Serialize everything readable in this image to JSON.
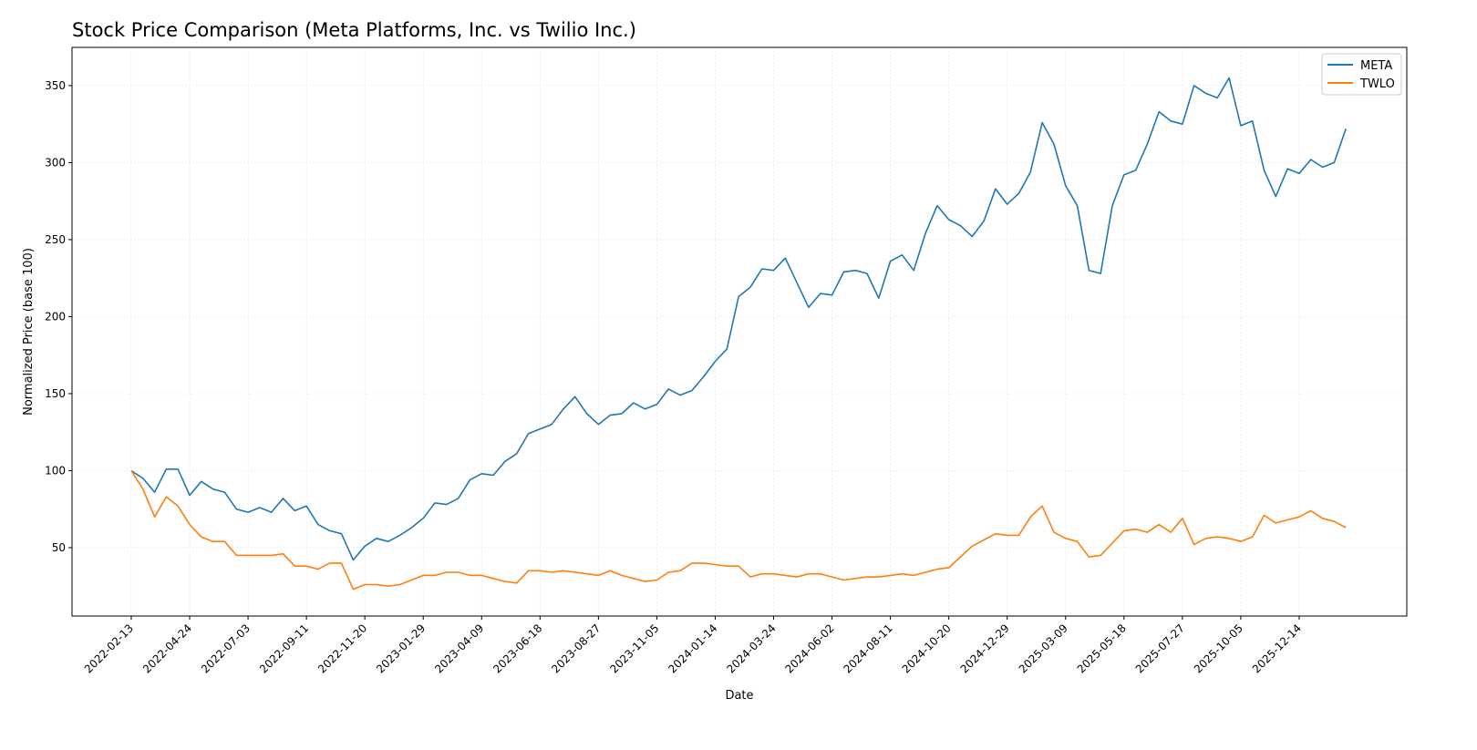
{
  "chart_data": {
    "type": "line",
    "title": "Stock Price Comparison (Meta Platforms, Inc. vs Twilio Inc.)",
    "xlabel": "Date",
    "ylabel": "Normalized Price (base 100)",
    "xlim": [
      "2021-12-04",
      "2026-04-22"
    ],
    "ylim": [
      5.6,
      374.8
    ],
    "grid": true,
    "legend_placement": "top-right",
    "x_ticks": [
      "2022-02-13",
      "2022-04-24",
      "2022-07-03",
      "2022-09-11",
      "2022-11-20",
      "2023-01-29",
      "2023-04-09",
      "2023-06-18",
      "2023-08-27",
      "2023-11-05",
      "2024-01-14",
      "2024-03-24",
      "2024-06-02",
      "2024-08-11",
      "2024-10-20",
      "2024-12-29",
      "2025-03-09",
      "2025-05-18",
      "2025-07-27",
      "2025-10-05",
      "2025-12-14"
    ],
    "y_ticks": [
      50,
      100,
      150,
      200,
      250,
      300,
      350
    ],
    "x": [
      "2022-02-13",
      "2022-02-27",
      "2022-03-13",
      "2022-03-27",
      "2022-04-10",
      "2022-04-24",
      "2022-05-08",
      "2022-05-22",
      "2022-06-05",
      "2022-06-19",
      "2022-07-03",
      "2022-07-17",
      "2022-07-31",
      "2022-08-14",
      "2022-08-28",
      "2022-09-11",
      "2022-09-25",
      "2022-10-09",
      "2022-10-23",
      "2022-11-06",
      "2022-11-20",
      "2022-12-04",
      "2022-12-18",
      "2023-01-01",
      "2023-01-15",
      "2023-01-29",
      "2023-02-12",
      "2023-02-26",
      "2023-03-12",
      "2023-03-26",
      "2023-04-09",
      "2023-04-23",
      "2023-05-07",
      "2023-05-21",
      "2023-06-04",
      "2023-06-18",
      "2023-07-02",
      "2023-07-16",
      "2023-07-30",
      "2023-08-13",
      "2023-08-27",
      "2023-09-10",
      "2023-09-24",
      "2023-10-08",
      "2023-10-22",
      "2023-11-05",
      "2023-11-19",
      "2023-12-03",
      "2023-12-17",
      "2023-12-31",
      "2024-01-14",
      "2024-01-28",
      "2024-02-11",
      "2024-02-25",
      "2024-03-10",
      "2024-03-24",
      "2024-04-07",
      "2024-04-21",
      "2024-05-05",
      "2024-05-19",
      "2024-06-02",
      "2024-06-16",
      "2024-06-30",
      "2024-07-14",
      "2024-07-28",
      "2024-08-11",
      "2024-08-25",
      "2024-09-08",
      "2024-09-22",
      "2024-10-06",
      "2024-10-20",
      "2024-11-03",
      "2024-11-17",
      "2024-12-01",
      "2024-12-15",
      "2024-12-29",
      "2025-01-12",
      "2025-01-26",
      "2025-02-09",
      "2025-02-23",
      "2025-03-09",
      "2025-03-23",
      "2025-04-06",
      "2025-04-20",
      "2025-05-04",
      "2025-05-18",
      "2025-06-01",
      "2025-06-15",
      "2025-06-29",
      "2025-07-13",
      "2025-07-27",
      "2025-08-10",
      "2025-08-24",
      "2025-09-07",
      "2025-09-21",
      "2025-10-05",
      "2025-10-19",
      "2025-11-02",
      "2025-11-16",
      "2025-11-30",
      "2025-12-14",
      "2025-12-28",
      "2026-01-11",
      "2026-01-25",
      "2026-02-08"
    ],
    "series": [
      {
        "name": "META",
        "color": "#1f77b4",
        "values": [
          100,
          95,
          86,
          101,
          101,
          84,
          93,
          88,
          86,
          75,
          73,
          76,
          73,
          82,
          74,
          77,
          65,
          61,
          59,
          42,
          51,
          56,
          54,
          58,
          63,
          69,
          79,
          78,
          82,
          94,
          98,
          97,
          106,
          111,
          124,
          127,
          130,
          140,
          148,
          137,
          130,
          136,
          137,
          144,
          140,
          143,
          153,
          149,
          152,
          161,
          171,
          179,
          213,
          219,
          231,
          230,
          238,
          222,
          206,
          215,
          214,
          229,
          230,
          228,
          212,
          236,
          240,
          230,
          254,
          272,
          263,
          259,
          252,
          262,
          283,
          273,
          280,
          294,
          326,
          312,
          285,
          272,
          230,
          228,
          272,
          292,
          295,
          312,
          333,
          327,
          325,
          350,
          345,
          342,
          355,
          324,
          327,
          295,
          278,
          296,
          293,
          302,
          297,
          300,
          322
        ]
      },
      {
        "name": "TWLO",
        "color": "#ff7f0e",
        "values": [
          100,
          88,
          70,
          83,
          77,
          65,
          57,
          54,
          54,
          45,
          45,
          45,
          45,
          46,
          38,
          38,
          36,
          40,
          40,
          23,
          26,
          26,
          25,
          26,
          29,
          32,
          32,
          34,
          34,
          32,
          32,
          30,
          28,
          27,
          35,
          35,
          34,
          35,
          34,
          33,
          32,
          35,
          32,
          30,
          28,
          29,
          34,
          35,
          40,
          40,
          39,
          38,
          38,
          31,
          33,
          33,
          32,
          31,
          33,
          33,
          31,
          29,
          30,
          31,
          31,
          32,
          33,
          32,
          34,
          36,
          37,
          44,
          51,
          55,
          59,
          58,
          58,
          70,
          77,
          60,
          56,
          54,
          44,
          45,
          53,
          61,
          62,
          60,
          65,
          60,
          69,
          52,
          56,
          57,
          56,
          54,
          57,
          71,
          66,
          68,
          70,
          74,
          69,
          67,
          63
        ]
      }
    ]
  }
}
